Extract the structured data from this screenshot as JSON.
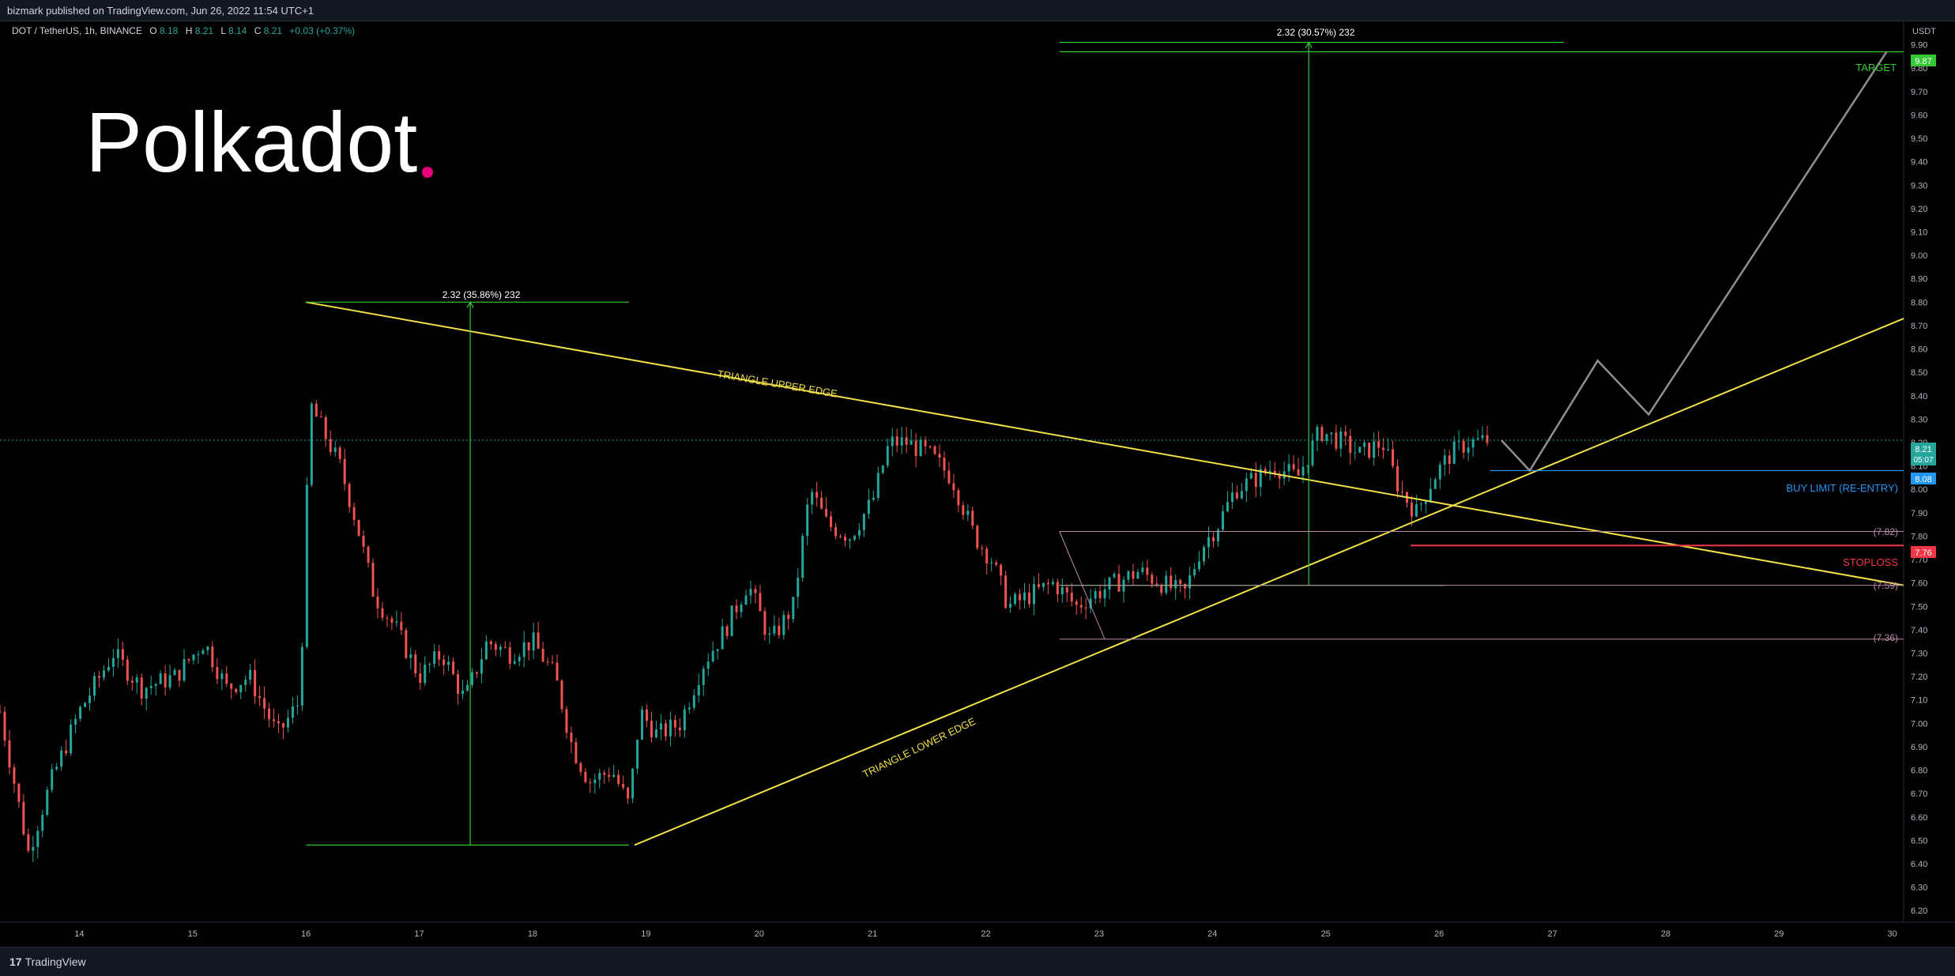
{
  "header": {
    "published": "bizmark published on TradingView.com, Jun 26, 2022 11:54 UTC+1"
  },
  "footer": {
    "brand": "TradingView",
    "brand_mark": "17"
  },
  "brand_logo": "Polkadot",
  "colors": {
    "background": "#000000",
    "up": "#26a69a",
    "down": "#ef5350",
    "triangle": "#f0e04a",
    "measure": "#36c936",
    "level": "#b98aa6",
    "buy_limit": "#2196f3",
    "stoploss": "#f23645",
    "projection": "#8f8f8f",
    "logo_dot": "#e6007a"
  },
  "chart_data": {
    "type": "candlestick",
    "symbol_line": {
      "symbol": "DOT / TetherUS, 1h, BINANCE",
      "o_label": "O",
      "o": "8.18",
      "h_label": "H",
      "h": "8.21",
      "l_label": "L",
      "l": "8.14",
      "c_label": "C",
      "c": "8.21",
      "change": "+0.03 (+0.37%)"
    },
    "x_axis": {
      "type": "date",
      "ticks": [
        "14",
        "15",
        "16",
        "17",
        "18",
        "19",
        "20",
        "21",
        "22",
        "23",
        "24",
        "25",
        "26",
        "27",
        "28",
        "29",
        "30"
      ],
      "tick_days": [
        14,
        15,
        16,
        17,
        18,
        19,
        20,
        21,
        22,
        23,
        24,
        25,
        26,
        27,
        28,
        29,
        30
      ],
      "range_days": [
        13.3,
        30.1
      ]
    },
    "y_axis": {
      "unit": "USDT",
      "range": [
        6.15,
        10.0
      ],
      "ticks": [
        "9.90",
        "9.80",
        "9.70",
        "9.60",
        "9.50",
        "9.40",
        "9.30",
        "9.20",
        "9.10",
        "9.00",
        "8.90",
        "8.80",
        "8.70",
        "8.60",
        "8.50",
        "8.40",
        "8.30",
        "8.20",
        "8.10",
        "8.00",
        "7.90",
        "7.80",
        "7.70",
        "7.60",
        "7.50",
        "7.40",
        "7.30",
        "7.20",
        "7.10",
        "7.00",
        "6.90",
        "6.80",
        "6.70",
        "6.60",
        "6.50",
        "6.40",
        "6.30",
        "6.20"
      ]
    },
    "price_anchors": [
      [
        13.3,
        7.05
      ],
      [
        13.55,
        6.45
      ],
      [
        13.75,
        6.75
      ],
      [
        14.0,
        7.05
      ],
      [
        14.3,
        7.3
      ],
      [
        14.55,
        7.15
      ],
      [
        14.85,
        7.2
      ],
      [
        15.1,
        7.35
      ],
      [
        15.3,
        7.15
      ],
      [
        15.5,
        7.2
      ],
      [
        15.75,
        6.95
      ],
      [
        15.95,
        7.1
      ],
      [
        16.0,
        7.9
      ],
      [
        16.05,
        8.35
      ],
      [
        16.15,
        8.25
      ],
      [
        16.3,
        8.1
      ],
      [
        16.45,
        7.85
      ],
      [
        16.6,
        7.55
      ],
      [
        16.8,
        7.4
      ],
      [
        17.0,
        7.2
      ],
      [
        17.2,
        7.3
      ],
      [
        17.4,
        7.1
      ],
      [
        17.6,
        7.35
      ],
      [
        17.8,
        7.3
      ],
      [
        18.0,
        7.35
      ],
      [
        18.2,
        7.2
      ],
      [
        18.35,
        6.9
      ],
      [
        18.5,
        6.75
      ],
      [
        18.7,
        6.8
      ],
      [
        18.85,
        6.65
      ],
      [
        18.95,
        7.05
      ],
      [
        19.1,
        6.95
      ],
      [
        19.3,
        7.0
      ],
      [
        19.5,
        7.25
      ],
      [
        19.7,
        7.4
      ],
      [
        19.9,
        7.6
      ],
      [
        20.1,
        7.35
      ],
      [
        20.3,
        7.5
      ],
      [
        20.45,
        8.0
      ],
      [
        20.6,
        7.85
      ],
      [
        20.8,
        7.8
      ],
      [
        21.0,
        7.95
      ],
      [
        21.15,
        8.2
      ],
      [
        21.3,
        8.2
      ],
      [
        21.5,
        8.15
      ],
      [
        21.7,
        8.05
      ],
      [
        21.9,
        7.8
      ],
      [
        22.05,
        7.7
      ],
      [
        22.2,
        7.5
      ],
      [
        22.4,
        7.55
      ],
      [
        22.6,
        7.6
      ],
      [
        22.8,
        7.5
      ],
      [
        22.95,
        7.55
      ],
      [
        23.15,
        7.6
      ],
      [
        23.35,
        7.65
      ],
      [
        23.55,
        7.6
      ],
      [
        23.75,
        7.55
      ],
      [
        23.9,
        7.75
      ],
      [
        24.05,
        7.85
      ],
      [
        24.2,
        8.0
      ],
      [
        24.4,
        8.05
      ],
      [
        24.55,
        8.1
      ],
      [
        24.75,
        8.05
      ],
      [
        24.95,
        8.25
      ],
      [
        25.15,
        8.2
      ],
      [
        25.3,
        8.15
      ],
      [
        25.5,
        8.2
      ],
      [
        25.65,
        8.0
      ],
      [
        25.8,
        7.9
      ],
      [
        25.95,
        8.05
      ],
      [
        26.1,
        8.15
      ],
      [
        26.25,
        8.2
      ],
      [
        26.45,
        8.21
      ]
    ],
    "lines": [
      {
        "kind": "triangle-upper",
        "from": [
          16.0,
          8.8
        ],
        "to": [
          30.1,
          7.59
        ]
      },
      {
        "kind": "triangle-lower",
        "from": [
          18.9,
          6.48
        ],
        "to": [
          30.1,
          8.73
        ]
      },
      {
        "kind": "measure-1-top",
        "from": [
          16.0,
          8.8
        ],
        "to": [
          18.85,
          8.8
        ]
      },
      {
        "kind": "measure-1-bottom",
        "from": [
          16.0,
          6.48
        ],
        "to": [
          18.85,
          6.48
        ]
      },
      {
        "kind": "measure-1-arrow",
        "from": [
          17.45,
          6.48
        ],
        "to": [
          17.45,
          8.8
        ]
      },
      {
        "kind": "measure-2-top",
        "from": [
          22.65,
          9.91
        ],
        "to": [
          27.1,
          9.91
        ]
      },
      {
        "kind": "measure-2-bottom",
        "from": [
          22.65,
          7.59
        ],
        "to": [
          26.05,
          7.59
        ]
      },
      {
        "kind": "measure-2-arrow",
        "from": [
          24.85,
          7.59
        ],
        "to": [
          24.85,
          9.91
        ]
      },
      {
        "kind": "target",
        "from": [
          22.65,
          9.87
        ],
        "to": [
          30.1,
          9.87
        ]
      },
      {
        "kind": "level-7.82",
        "from": [
          22.65,
          7.82
        ],
        "to": [
          30.1,
          7.82
        ]
      },
      {
        "kind": "level-7.59",
        "from": [
          22.65,
          7.59
        ],
        "to": [
          30.1,
          7.59
        ]
      },
      {
        "kind": "level-7.36",
        "from": [
          22.65,
          7.36
        ],
        "to": [
          30.1,
          7.36
        ]
      },
      {
        "kind": "buy-limit",
        "from": [
          26.45,
          8.08
        ],
        "to": [
          30.1,
          8.08
        ]
      },
      {
        "kind": "stoploss",
        "from": [
          25.75,
          7.76
        ],
        "to": [
          30.1,
          7.76
        ]
      },
      {
        "kind": "current-price",
        "from": [
          13.3,
          8.21
        ],
        "to": [
          30.1,
          8.21
        ]
      }
    ],
    "projection_path": [
      [
        26.55,
        8.21
      ],
      [
        26.8,
        8.08
      ],
      [
        27.4,
        8.55
      ],
      [
        27.85,
        8.32
      ],
      [
        29.95,
        9.87
      ]
    ],
    "retest_path": [
      [
        22.65,
        7.82
      ],
      [
        23.05,
        7.36
      ]
    ],
    "labels": {
      "measure_top": "2.32 (30.57%) 232",
      "measure_left": "2.32 (35.86%) 232",
      "triangle_upper": "TRIANGLE UPPER EDGE",
      "triangle_lower": "TRIANGLE LOWER EDGE",
      "target": "TARGET",
      "buy_limit": "BUY LIMIT (RE-ENTRY)",
      "stoploss": "STOPLOSS",
      "level_782": "(7.82)",
      "level_759": "(7.59)",
      "level_736": "(7.36)"
    },
    "price_tags": {
      "target": "9.87",
      "current": "8.21",
      "countdown": "05:07",
      "buy_limit": "8.08",
      "stoploss": "7.76"
    }
  }
}
